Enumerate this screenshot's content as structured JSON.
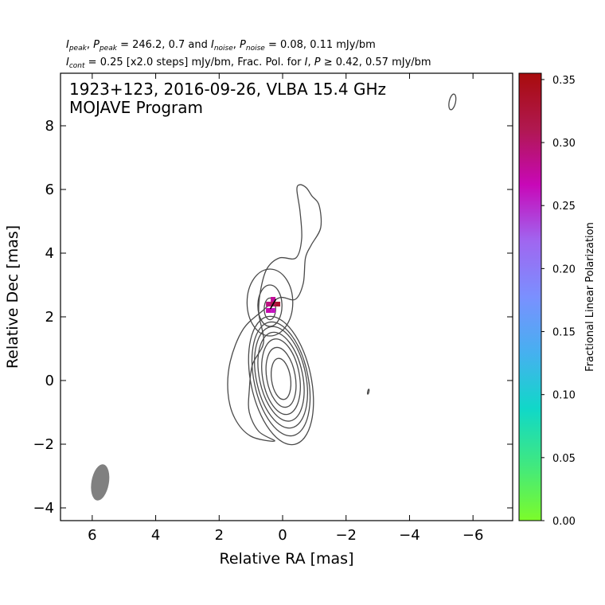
{
  "header": {
    "line1_text": "I_peak, P_peak = 246.2, 0.7 and I_noise, P_noise = 0.08, 0.11 mJy/bm",
    "line2_text": "I_cont = 0.25 [x2.0 steps] mJy/bm, Frac. Pol. for I, P ≥ 0.42, 0.57 mJy/bm",
    "line1": {
      "i_peak_sym": "I",
      "i_peak_sub": "peak",
      "p_peak_sym": "P",
      "p_peak_sub": "peak",
      "peak_values": "= 246.2, 0.7 and",
      "i_noise_sym": "I",
      "i_noise_sub": "noise",
      "p_noise_sym": "P",
      "p_noise_sub": "noise",
      "noise_values": "= 0.08, 0.11 mJy/bm"
    },
    "line2": {
      "i_cont_sym": "I",
      "i_cont_sub": "cont",
      "cont_text": "= 0.25 [x2.0 steps] mJy/bm, Frac. Pol. for",
      "i_sym": "I",
      "p_sym": "P",
      "threshold_text": "≥ 0.42, 0.57 mJy/bm"
    }
  },
  "chart_data": {
    "type": "contour",
    "title": "1923+123, 2016-09-26, VLBA 15.4 GHz",
    "subtitle": "MOJAVE Program",
    "xlabel": "Relative RA [mas]",
    "ylabel": "Relative Dec [mas]",
    "xlim": [
      7.0,
      -7.25
    ],
    "ylim": [
      -4.4,
      9.65
    ],
    "x_ticks": [
      6,
      4,
      2,
      0,
      -2,
      -4,
      -6
    ],
    "x_tick_labels": [
      "6",
      "4",
      "2",
      "0",
      "−2",
      "−4",
      "−6"
    ],
    "y_ticks": [
      -4,
      -2,
      0,
      2,
      4,
      6,
      8
    ],
    "y_tick_labels": [
      "−4",
      "−2",
      "0",
      "2",
      "4",
      "6",
      "8"
    ],
    "grid": false,
    "contour_levels_mJy_bm": [
      0.25,
      0.5,
      1,
      2,
      4,
      8,
      16,
      32,
      64,
      128
    ],
    "contour_color": "#4a4a4a",
    "core": {
      "x": 0.05,
      "y": 0.0
    },
    "knot": {
      "x": 0.4,
      "y": 2.3
    },
    "outer_contour": [
      [
        0.25,
        -1.9
      ],
      [
        1.0,
        -1.75
      ],
      [
        1.5,
        -1.2
      ],
      [
        1.72,
        -0.4
      ],
      [
        1.65,
        0.6
      ],
      [
        1.25,
        1.6
      ],
      [
        0.62,
        2.2
      ],
      [
        0.1,
        2.6
      ],
      [
        -0.4,
        2.55
      ],
      [
        -0.65,
        3.05
      ],
      [
        -0.72,
        3.85
      ],
      [
        -0.9,
        4.25
      ],
      [
        -1.2,
        4.8
      ],
      [
        -1.15,
        5.5
      ],
      [
        -0.92,
        5.8
      ],
      [
        -0.75,
        6.05
      ],
      [
        -0.55,
        6.15
      ],
      [
        -0.45,
        6.0
      ],
      [
        -0.55,
        5.3
      ],
      [
        -0.6,
        4.45
      ],
      [
        -0.42,
        3.85
      ],
      [
        0.1,
        3.85
      ],
      [
        0.5,
        3.5
      ],
      [
        0.7,
        2.8
      ],
      [
        0.75,
        2.1
      ],
      [
        0.6,
        1.2
      ],
      [
        0.95,
        0.5
      ],
      [
        1.05,
        -0.3
      ],
      [
        1.05,
        -1.0
      ],
      [
        0.75,
        -1.6
      ]
    ],
    "knot_contours": [
      {
        "rx": 0.72,
        "ry": 1.05,
        "cy": 2.45
      },
      {
        "rx": 0.38,
        "ry": 0.65,
        "cy": 2.35
      },
      {
        "rx": 0.18,
        "ry": 0.34,
        "cy": 2.25
      }
    ],
    "core_contours": [
      {
        "rx": 0.95,
        "ry": 2.05,
        "cy": 0.0,
        "tilt": -12
      },
      {
        "rx": 0.85,
        "ry": 1.82,
        "cy": 0.05,
        "tilt": -12
      },
      {
        "rx": 0.78,
        "ry": 1.62,
        "cy": 0.1,
        "tilt": -12
      },
      {
        "rx": 0.68,
        "ry": 1.42,
        "cy": 0.12,
        "tilt": -12
      },
      {
        "rx": 0.58,
        "ry": 1.2,
        "cy": 0.12,
        "tilt": -10
      },
      {
        "rx": 0.45,
        "ry": 0.95,
        "cy": 0.1,
        "tilt": -10
      },
      {
        "rx": 0.3,
        "ry": 0.65,
        "cy": 0.05,
        "tilt": -8
      }
    ],
    "isolated_contours": [
      {
        "x": -5.35,
        "y": 8.75,
        "rx": 0.1,
        "ry": 0.25
      },
      {
        "x": -2.7,
        "y": -0.35,
        "rx": 0.02,
        "ry": 0.08
      }
    ],
    "polarization_pixels": [
      {
        "x": 0.45,
        "y": 2.2,
        "frac_pol": 0.27
      },
      {
        "x": 0.3,
        "y": 2.2,
        "frac_pol": 0.26
      },
      {
        "x": 0.45,
        "y": 2.4,
        "frac_pol": 0.29
      },
      {
        "x": 0.3,
        "y": 2.4,
        "frac_pol": 0.31
      },
      {
        "x": 0.15,
        "y": 2.4,
        "frac_pol": 0.33
      },
      {
        "x": 0.3,
        "y": 2.55,
        "frac_pol": 0.28
      }
    ],
    "evpa_vectors": [
      {
        "x": 0.3,
        "y": 2.4,
        "angle_deg": 30
      }
    ],
    "beam": {
      "x": 5.75,
      "y": -3.2,
      "major_mas": 1.15,
      "minor_mas": 0.55,
      "pa_deg": 10,
      "color": "#808080"
    },
    "colorbar": {
      "label": "Fractional Linear Polarization",
      "range": [
        0.0,
        0.355
      ],
      "ticks": [
        0.0,
        0.05,
        0.1,
        0.15,
        0.2,
        0.25,
        0.3,
        0.35
      ],
      "tick_labels": [
        "0.00",
        "0.05",
        "0.10",
        "0.15",
        "0.20",
        "0.25",
        "0.30",
        "0.35"
      ],
      "colors": [
        "#7cfc2a",
        "#40e880",
        "#10d8c8",
        "#46b0f0",
        "#7a90ff",
        "#a066f0",
        "#c808b8",
        "#b01850",
        "#a80c0c"
      ]
    }
  }
}
